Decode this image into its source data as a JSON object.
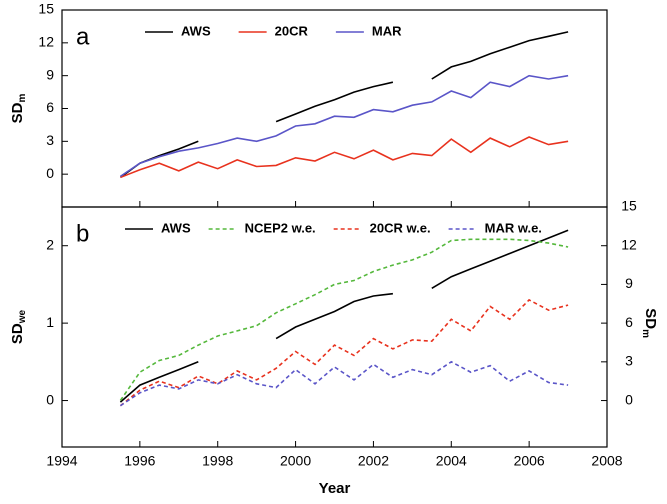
{
  "chart_data": [
    {
      "type": "line",
      "panel_label": "a",
      "y_label": "SD",
      "y_label_sub": "m",
      "x": [
        1995.5,
        1996,
        1996.5,
        1997,
        1997.5,
        1998,
        1998.5,
        1999,
        1999.5,
        2000,
        2000.5,
        2001,
        2001.5,
        2002,
        2002.5,
        2003,
        2003.5,
        2004,
        2004.5,
        2005,
        2005.5,
        2006,
        2006.5,
        2007
      ],
      "xlim": [
        1994,
        2008
      ],
      "xticks": [
        1994,
        1996,
        1998,
        2000,
        2002,
        2004,
        2006,
        2008
      ],
      "ylim": [
        -3,
        15
      ],
      "yticks": [
        0,
        3,
        6,
        9,
        12,
        15
      ],
      "series": [
        {
          "name": "AWS",
          "color": "#000000",
          "dash": false,
          "values": [
            -0.3,
            1.0,
            1.7,
            2.3,
            3.0,
            null,
            3.9,
            null,
            4.8,
            5.5,
            6.2,
            6.8,
            7.5,
            8.0,
            8.4,
            null,
            8.7,
            9.8,
            10.3,
            11.0,
            11.6,
            12.2,
            12.6,
            13.0
          ]
        },
        {
          "name": "20CR",
          "color": "#e8321e",
          "dash": false,
          "values": [
            -0.3,
            0.4,
            1.0,
            0.3,
            1.1,
            0.5,
            1.3,
            0.7,
            0.8,
            1.5,
            1.2,
            2.0,
            1.4,
            2.2,
            1.3,
            1.9,
            1.7,
            3.2,
            2.0,
            3.3,
            2.5,
            3.4,
            2.7,
            3.0
          ]
        },
        {
          "name": "MAR",
          "color": "#5a55c8",
          "dash": false,
          "values": [
            -0.2,
            1.0,
            1.6,
            2.1,
            2.4,
            2.8,
            3.3,
            3.0,
            3.5,
            4.4,
            4.6,
            5.3,
            5.2,
            5.9,
            5.7,
            6.3,
            6.6,
            7.6,
            7.0,
            8.4,
            8.0,
            9.0,
            8.7,
            9.0
          ]
        }
      ]
    },
    {
      "type": "line",
      "panel_label": "b",
      "y_label": "SD",
      "y_label_sub": "we",
      "y2_label": "SD",
      "y2_label_sub": "m",
      "x_label": "Year",
      "x": [
        1995.5,
        1996,
        1996.5,
        1997,
        1997.5,
        1998,
        1998.5,
        1999,
        1999.5,
        2000,
        2000.5,
        2001,
        2001.5,
        2002,
        2002.5,
        2003,
        2003.5,
        2004,
        2004.5,
        2005,
        2005.5,
        2006,
        2006.5,
        2007
      ],
      "xlim": [
        1994,
        2008
      ],
      "xticks": [
        1994,
        1996,
        1998,
        2000,
        2002,
        2004,
        2006,
        2008
      ],
      "ylim": [
        -0.6,
        2.5
      ],
      "yticks": [
        0,
        1,
        2
      ],
      "y2lim": [
        -3.6,
        15
      ],
      "y2ticks": [
        0,
        3,
        6,
        9,
        12,
        15
      ],
      "series": [
        {
          "name": "AWS",
          "color": "#000000",
          "dash": false,
          "values": [
            -0.02,
            0.2,
            0.3,
            0.4,
            0.5,
            null,
            0.6,
            null,
            0.8,
            0.95,
            1.05,
            1.15,
            1.28,
            1.35,
            1.38,
            null,
            1.45,
            1.6,
            1.7,
            1.8,
            1.9,
            2.0,
            2.1,
            2.2
          ]
        },
        {
          "name": "NCEP2 w.e.",
          "color": "#55b83c",
          "dash": true,
          "axis": "y2",
          "values": [
            0.0,
            2.2,
            3.1,
            3.5,
            4.3,
            5.0,
            5.4,
            5.8,
            6.8,
            7.5,
            8.2,
            9.0,
            9.3,
            10.0,
            10.5,
            10.9,
            11.5,
            12.4,
            12.5,
            12.5,
            12.5,
            12.4,
            12.2,
            11.9
          ]
        },
        {
          "name": "20CR w.e.",
          "color": "#e8321e",
          "dash": true,
          "axis": "y2",
          "values": [
            -0.4,
            0.8,
            1.5,
            1.0,
            1.9,
            1.3,
            2.3,
            1.6,
            2.5,
            3.8,
            2.8,
            4.3,
            3.5,
            4.8,
            4.0,
            4.7,
            4.6,
            6.3,
            5.4,
            7.3,
            6.3,
            7.8,
            7.0,
            7.4
          ]
        },
        {
          "name": "MAR w.e.",
          "color": "#5a55c8",
          "dash": true,
          "axis": "y2",
          "values": [
            -0.4,
            0.6,
            1.2,
            0.9,
            1.6,
            1.3,
            2.0,
            1.3,
            1.0,
            2.4,
            1.3,
            2.6,
            1.6,
            2.8,
            1.8,
            2.4,
            2.0,
            3.0,
            2.2,
            2.7,
            1.5,
            2.3,
            1.4,
            1.2
          ]
        }
      ]
    }
  ]
}
